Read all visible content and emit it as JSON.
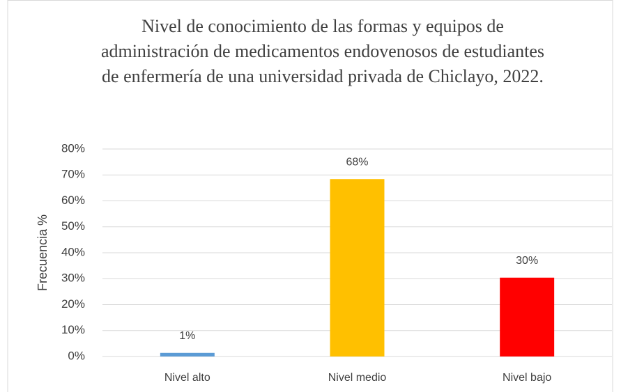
{
  "chart_data": {
    "type": "bar",
    "title": "Nivel de conocimiento de las formas y equipos de administración de medicamentos endovenosos de estudiantes de enfermería de una universidad privada de Chiclayo, 2022.",
    "y_label": "Frecuencia %",
    "categories": [
      "Nivel alto",
      "Nivel medio",
      "Nivel bajo"
    ],
    "values": [
      1.4,
      68.4,
      30.4
    ],
    "value_labels": [
      "1%",
      "68%",
      "30%"
    ],
    "colors": [
      "#5b9bd5",
      "#ffc000",
      "#ff0000"
    ],
    "ylim": [
      0,
      80
    ],
    "yticks": [
      {
        "value": 0,
        "label": "0%"
      },
      {
        "value": 10,
        "label": "10%"
      },
      {
        "value": 20,
        "label": "20%"
      },
      {
        "value": 30,
        "label": "30%"
      },
      {
        "value": 40,
        "label": "40%"
      },
      {
        "value": 50,
        "label": "50%"
      },
      {
        "value": 60,
        "label": "60%"
      },
      {
        "value": 70,
        "label": "70%"
      },
      {
        "value": 80,
        "label": "80%"
      }
    ],
    "grid": true
  }
}
